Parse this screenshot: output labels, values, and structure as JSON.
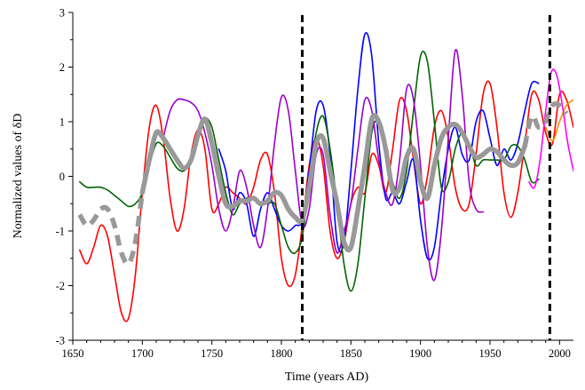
{
  "chart_data": {
    "type": "line",
    "xlabel": "Time (years AD)",
    "ylabel": "Normalized values of δD",
    "xlim": [
      1650,
      2010
    ],
    "ylim": [
      -3,
      3
    ],
    "x_ticks": [
      1650,
      1700,
      1750,
      1800,
      1850,
      1900,
      1950,
      2000
    ],
    "y_ticks": [
      -3,
      -2,
      -1,
      0,
      1,
      2,
      3
    ],
    "x_tick_labels": [
      "1650",
      "1700",
      "1750",
      "1800",
      "1850",
      "1900",
      "1950",
      "2000"
    ],
    "y_tick_labels": [
      "-3",
      "-2",
      "-1",
      "0",
      "1",
      "2",
      "3"
    ],
    "grid": false,
    "legend": "none",
    "vertical_markers": [
      1815,
      1993
    ],
    "series": [
      {
        "color": "#ff0000",
        "style": "thin",
        "x": [
          1655,
          1660,
          1665,
          1670,
          1675,
          1680,
          1685,
          1690,
          1695,
          1700,
          1705,
          1710,
          1715,
          1720,
          1725,
          1730,
          1735,
          1740,
          1745,
          1750,
          1755,
          1760,
          1765,
          1770,
          1775,
          1780,
          1785,
          1790,
          1795,
          1800,
          1805,
          1810,
          1815,
          1820,
          1825,
          1830,
          1835,
          1840,
          1845,
          1850,
          1855,
          1860,
          1865,
          1870,
          1875,
          1880,
          1885,
          1890,
          1895,
          1900,
          1905,
          1910,
          1915,
          1920,
          1925,
          1930,
          1935,
          1940,
          1945,
          1950,
          1955,
          1960,
          1965,
          1970,
          1975,
          1980,
          1985,
          1990,
          1995,
          2000,
          2005,
          2010
        ],
        "y": [
          -1.35,
          -1.6,
          -1.3,
          -0.9,
          -1.1,
          -1.8,
          -2.5,
          -2.6,
          -1.8,
          -0.3,
          0.9,
          1.3,
          0.7,
          -0.4,
          -1.0,
          -0.6,
          0.4,
          0.85,
          0.5,
          -0.6,
          -0.5,
          -0.2,
          -0.3,
          -0.4,
          -0.5,
          -0.2,
          0.3,
          0.4,
          -0.3,
          -1.5,
          -2.0,
          -1.8,
          -0.9,
          0.2,
          0.7,
          0.2,
          -1.0,
          -1.5,
          -1.2,
          -0.5,
          -0.2,
          -0.3,
          0.4,
          0.2,
          -0.3,
          0.5,
          1.4,
          1.2,
          0.3,
          -0.5,
          0.0,
          0.9,
          1.2,
          0.7,
          -0.2,
          -0.6,
          -0.5,
          0.4,
          1.5,
          1.7,
          0.9,
          -0.3,
          -0.75,
          -0.3,
          0.6,
          1.5,
          1.4,
          0.8,
          0.6,
          1.5,
          1.4,
          0.9
        ]
      },
      {
        "color": "#0000ff",
        "style": "thin",
        "x": [
          1755,
          1760,
          1765,
          1770,
          1775,
          1780,
          1785,
          1790,
          1795,
          1800,
          1805,
          1810,
          1815,
          1820,
          1825,
          1830,
          1835,
          1840,
          1845,
          1850,
          1855,
          1860,
          1865,
          1870,
          1875,
          1880,
          1885,
          1890,
          1895,
          1900,
          1905,
          1910,
          1915,
          1920,
          1925,
          1930,
          1935,
          1940,
          1945,
          1950,
          1955,
          1960,
          1965,
          1970,
          1975,
          1980,
          1985
        ],
        "y": [
          0.5,
          0.1,
          -0.6,
          -0.3,
          -0.5,
          -1.1,
          -0.6,
          -0.3,
          -0.6,
          -0.9,
          -1.0,
          -0.9,
          -0.8,
          0.1,
          1.2,
          1.3,
          0.4,
          -1.2,
          -1.2,
          0.1,
          1.6,
          2.6,
          2.2,
          0.6,
          -0.4,
          -0.3,
          -0.5,
          -0.1,
          0.3,
          -0.8,
          -1.5,
          -1.3,
          -0.3,
          0.5,
          0.9,
          0.4,
          0.3,
          1.0,
          1.2,
          0.7,
          0.2,
          0.5,
          0.3,
          0.6,
          1.2,
          1.7,
          1.7
        ]
      },
      {
        "color": "#006400",
        "style": "thin",
        "x": [
          1655,
          1660,
          1665,
          1670,
          1675,
          1680,
          1685,
          1690,
          1695,
          1700,
          1705,
          1710,
          1715,
          1720,
          1725,
          1730,
          1735,
          1740,
          1745,
          1750,
          1755,
          1760,
          1765,
          1770,
          1775,
          1780,
          1785,
          1790,
          1795,
          1800,
          1805,
          1810,
          1815,
          1820,
          1825,
          1830,
          1835,
          1840,
          1845,
          1850,
          1855,
          1860,
          1865,
          1870,
          1875,
          1880,
          1885,
          1890,
          1895,
          1900,
          1905,
          1910,
          1915,
          1920,
          1925,
          1930,
          1935,
          1940,
          1945,
          1950,
          1955,
          1960,
          1965,
          1970,
          1975,
          1980,
          1985
        ],
        "y": [
          -0.1,
          -0.2,
          -0.2,
          -0.2,
          -0.25,
          -0.35,
          -0.45,
          -0.55,
          -0.5,
          -0.3,
          0.2,
          0.6,
          0.55,
          0.35,
          0.15,
          0.1,
          0.3,
          0.7,
          1.05,
          0.9,
          0.3,
          -0.3,
          -0.7,
          -0.5,
          -0.4,
          -0.4,
          -0.5,
          -0.5,
          -0.5,
          -0.9,
          -1.3,
          -1.4,
          -1.1,
          -0.1,
          0.8,
          1.1,
          0.5,
          -0.5,
          -1.6,
          -2.1,
          -1.6,
          -0.4,
          0.8,
          1.0,
          0.5,
          -0.1,
          -0.4,
          0.1,
          1.2,
          2.2,
          2.1,
          1.0,
          -0.2,
          -0.1,
          0.5,
          0.8,
          0.6,
          0.2,
          0.3,
          0.3,
          0.3,
          0.3,
          0.55,
          0.55,
          0.3,
          -0.1,
          -0.05
        ]
      },
      {
        "color": "#9900cc",
        "style": "thin",
        "x": [
          1715,
          1720,
          1725,
          1730,
          1735,
          1740,
          1745,
          1750,
          1755,
          1760,
          1765,
          1770,
          1775,
          1780,
          1785,
          1790,
          1795,
          1800,
          1805,
          1810,
          1815,
          1820,
          1825,
          1830,
          1835,
          1840,
          1845,
          1850,
          1855,
          1860,
          1865,
          1870,
          1875,
          1880,
          1885,
          1890,
          1895,
          1900,
          1905,
          1910,
          1915,
          1920,
          1925,
          1930,
          1935,
          1940,
          1945
        ],
        "y": [
          0.7,
          1.2,
          1.4,
          1.4,
          1.35,
          1.2,
          0.8,
          0.2,
          -0.6,
          -1.0,
          -0.6,
          0.1,
          -0.2,
          -0.9,
          -1.3,
          -0.6,
          0.6,
          1.45,
          1.2,
          0.1,
          -0.9,
          -0.6,
          0.4,
          0.4,
          -0.7,
          -1.4,
          -1.0,
          -0.5,
          0.5,
          1.4,
          1.2,
          0.3,
          -0.3,
          -0.5,
          0.3,
          1.6,
          1.4,
          0.2,
          -1.3,
          -1.9,
          -1.0,
          0.7,
          2.3,
          1.5,
          -0.1,
          -0.6,
          -0.65
        ]
      },
      {
        "color": "#ff8c00",
        "style": "thin",
        "x": [
          1990,
          1995,
          2000,
          2005,
          2010
        ],
        "y": [
          0.9,
          0.65,
          1.0,
          1.3,
          1.4
        ]
      },
      {
        "color": "#ff00ff",
        "style": "thin",
        "x": [
          1978,
          1982,
          1986,
          1990,
          1994,
          1998,
          2002,
          2006,
          2010
        ],
        "y": [
          -0.1,
          -0.2,
          0.3,
          1.2,
          1.9,
          1.85,
          1.3,
          0.6,
          0.1
        ]
      },
      {
        "color": "#999999",
        "style": "thick-dashed",
        "x": [
          1655,
          1660,
          1665,
          1670,
          1675,
          1680,
          1685,
          1690,
          1695,
          1700
        ],
        "y": [
          -0.7,
          -0.9,
          -0.8,
          -0.6,
          -0.6,
          -0.9,
          -1.4,
          -1.6,
          -1.2,
          -0.3
        ]
      },
      {
        "color": "#999999",
        "style": "thick",
        "x": [
          1700,
          1705,
          1710,
          1715,
          1720,
          1725,
          1730,
          1735,
          1740,
          1745,
          1750,
          1755,
          1760,
          1765,
          1770,
          1775,
          1780,
          1785,
          1790,
          1795,
          1800,
          1805,
          1810,
          1815,
          1820,
          1825,
          1830,
          1835,
          1840,
          1845,
          1850,
          1855,
          1860,
          1865,
          1870,
          1875,
          1880,
          1885,
          1890,
          1895,
          1900,
          1905,
          1910,
          1915,
          1920,
          1925,
          1930,
          1935,
          1940,
          1945,
          1950,
          1955,
          1960,
          1965,
          1970,
          1975
        ],
        "y": [
          -0.3,
          0.3,
          0.8,
          0.7,
          0.5,
          0.3,
          0.15,
          0.3,
          0.75,
          1.05,
          0.6,
          0.0,
          -0.5,
          -0.55,
          -0.45,
          -0.45,
          -0.4,
          -0.5,
          -0.45,
          -0.3,
          -0.35,
          -0.6,
          -0.75,
          -0.8,
          -0.2,
          0.6,
          0.7,
          0.1,
          -0.5,
          -1.2,
          -1.3,
          -0.6,
          0.2,
          1.05,
          1.0,
          0.5,
          -0.25,
          -0.2,
          0.35,
          0.5,
          -0.1,
          -0.4,
          0.2,
          0.7,
          0.9,
          0.95,
          0.8,
          0.55,
          0.35,
          0.4,
          0.5,
          0.45,
          0.3,
          0.2,
          0.25,
          0.55
        ]
      },
      {
        "color": "#999999",
        "style": "thick-dashed",
        "x": [
          1975,
          1980,
          1985,
          1990,
          1995,
          2000,
          2005
        ],
        "y": [
          0.55,
          1.1,
          0.9,
          1.0,
          1.3,
          1.3,
          1.15
        ]
      }
    ]
  }
}
